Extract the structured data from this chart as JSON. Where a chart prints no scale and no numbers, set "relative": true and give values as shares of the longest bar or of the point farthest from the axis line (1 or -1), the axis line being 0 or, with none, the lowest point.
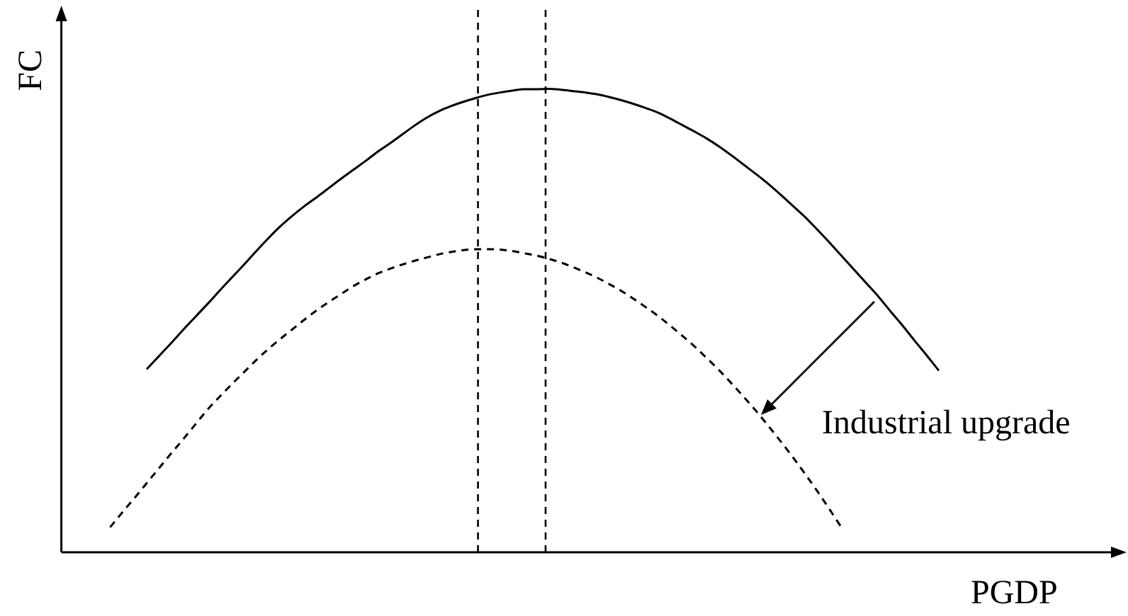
{
  "chart_data": {
    "type": "line",
    "relative": true,
    "xlabel": "PGDP",
    "ylabel": "FC",
    "annotations": [
      "Industrial upgrade"
    ],
    "marker": "none",
    "categories": [
      null,
      null,
      null,
      null,
      null,
      null,
      null,
      null,
      null,
      null,
      null,
      null,
      null,
      null,
      null,
      null,
      null,
      null,
      null,
      null,
      null,
      null,
      null,
      null,
      null,
      null,
      null,
      null,
      null,
      null,
      null,
      null,
      null,
      null,
      null,
      null,
      null,
      null,
      null,
      null,
      null,
      null,
      null,
      null,
      null,
      null,
      null,
      null,
      null,
      null,
      null,
      null,
      null,
      null,
      null,
      null,
      null,
      null,
      null,
      null,
      null,
      null,
      null,
      null,
      null,
      null,
      null,
      null,
      null,
      null,
      null,
      null,
      null,
      null,
      null,
      null,
      null,
      null,
      null,
      null,
      null,
      null,
      null,
      null,
      null,
      null,
      null
    ],
    "series": [
      {
        "color": "#000000",
        "line_style": "solid",
        "values": [
          null,
          null,
          null,
          null,
          null,
          null,
          null,
          0.395,
          0.423,
          0.451,
          0.48,
          0.508,
          0.536,
          0.565,
          0.593,
          0.621,
          0.65,
          0.678,
          0.704,
          0.727,
          0.748,
          0.767,
          0.787,
          0.807,
          0.826,
          0.845,
          0.865,
          0.883,
          0.902,
          0.921,
          0.938,
          0.952,
          0.963,
          0.972,
          0.98,
          0.987,
          0.992,
          0.996,
          0.999,
          0.999,
          1,
          0.998,
          0.995,
          0.992,
          0.988,
          0.982,
          0.975,
          0.967,
          0.958,
          0.948,
          0.935,
          0.921,
          0.907,
          0.892,
          0.875,
          0.856,
          0.836,
          0.816,
          0.795,
          0.772,
          0.748,
          0.724,
          0.697,
          0.669,
          0.64,
          0.611,
          0.582,
          0.553,
          0.521,
          0.49,
          0.457,
          0.425,
          0.392,
          null,
          null,
          null,
          null,
          null,
          null,
          null,
          null,
          null,
          null,
          null,
          null,
          null,
          null
        ]
      },
      {
        "color": "#000000",
        "line_style": "dashed",
        "values": [
          null,
          null,
          null,
          null,
          0.054,
          0.086,
          0.117,
          0.149,
          0.181,
          0.213,
          0.244,
          0.276,
          0.308,
          0.336,
          0.363,
          0.389,
          0.415,
          0.439,
          0.461,
          0.482,
          0.503,
          0.523,
          0.541,
          0.558,
          0.575,
          0.589,
          0.602,
          0.612,
          0.621,
          0.629,
          0.636,
          0.643,
          0.648,
          0.652,
          0.654,
          0.654,
          0.653,
          0.65,
          0.645,
          0.64,
          0.633,
          0.625,
          0.615,
          0.604,
          0.592,
          0.578,
          0.563,
          0.546,
          0.528,
          0.509,
          0.488,
          0.466,
          0.443,
          0.418,
          0.392,
          0.364,
          0.335,
          0.305,
          0.273,
          0.24,
          0.206,
          0.17,
          0.133,
          0.094,
          0.054,
          null,
          null,
          null,
          null,
          null,
          null,
          null,
          null,
          null,
          null,
          null,
          null,
          null,
          null,
          null,
          null,
          null,
          null,
          null,
          null,
          null,
          null
        ]
      }
    ]
  }
}
